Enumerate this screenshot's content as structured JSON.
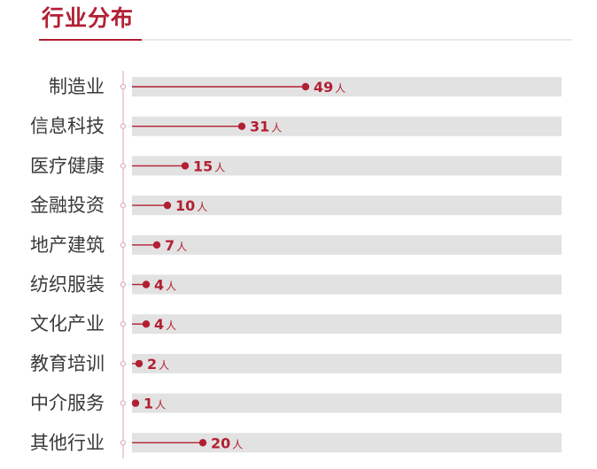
{
  "header": {
    "title": "行业分布"
  },
  "colors": {
    "accent": "#b21f33",
    "track": "#e2e2e2",
    "axis": "#d9a6ad",
    "label": "#3a3a3a"
  },
  "chart_data": {
    "type": "bar",
    "title": "行业分布",
    "unit": "人",
    "categories": [
      "制造业",
      "信息科技",
      "医疗健康",
      "金融投资",
      "地产建筑",
      "纺织服装",
      "文化产业",
      "教育培训",
      "中介服务",
      "其他行业"
    ],
    "values": [
      49,
      31,
      15,
      10,
      7,
      4,
      4,
      2,
      1,
      20
    ],
    "xlim": [
      0,
      120
    ],
    "grid": false,
    "legend": "none"
  }
}
